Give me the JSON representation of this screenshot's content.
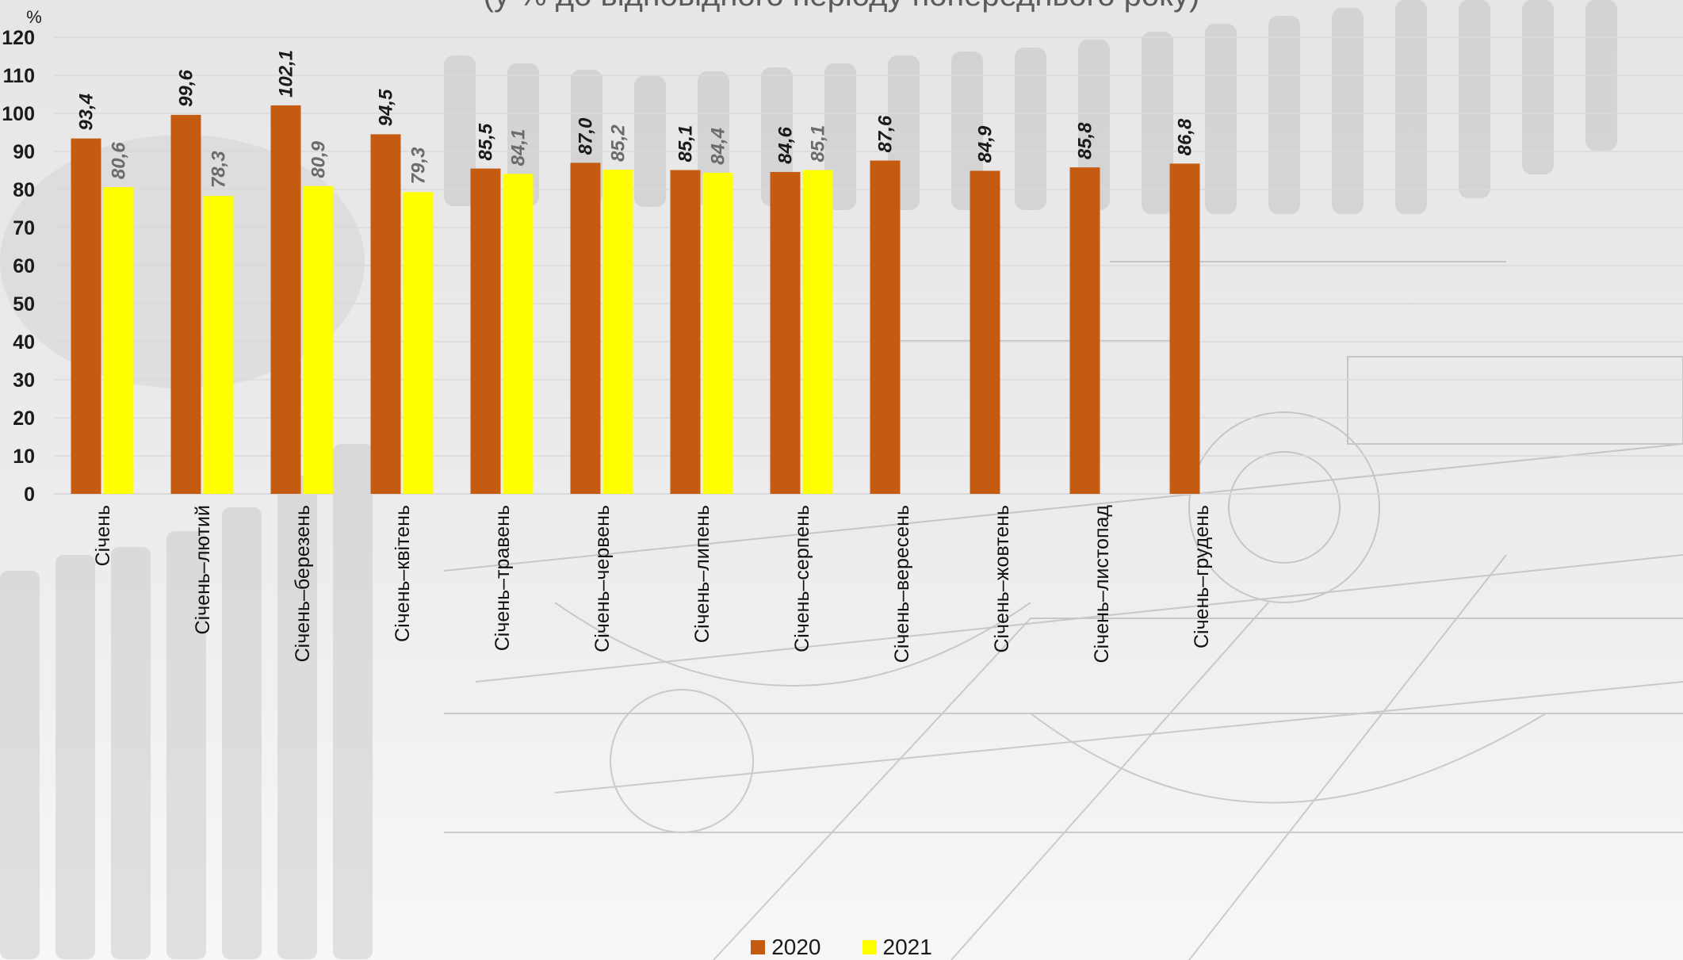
{
  "subtitle": "(у % до відповідного періоду попереднього року)",
  "colors": {
    "series_2020": "#c55a11",
    "series_2021": "#ffff00",
    "label_2020": "#1a1a1a",
    "label_2021": "#6b6b6b",
    "grid": "#d9d9d9"
  },
  "chart_data": {
    "type": "bar",
    "title": "",
    "subtitle": "(у % до відповідного періоду попереднього року)",
    "ylabel": "%",
    "xlabel": "",
    "ylim": [
      0,
      120
    ],
    "yticks": [
      0,
      10,
      20,
      30,
      40,
      50,
      60,
      70,
      80,
      90,
      100,
      110,
      120
    ],
    "grid": true,
    "legend_position": "bottom",
    "categories": [
      "Січень",
      "Січень–лютий",
      "Січень–березень",
      "Січень–квітень",
      "Січень–травень",
      "Січень–червень",
      "Січень–липень",
      "Січень–серпень",
      "Січень–вересень",
      "Січень–жовтень",
      "Січень–листопад",
      "Січень–грудень"
    ],
    "series": [
      {
        "name": "2020",
        "values": [
          93.4,
          99.6,
          102.1,
          94.5,
          85.5,
          87.0,
          85.1,
          84.6,
          87.6,
          84.9,
          85.8,
          86.8
        ],
        "labels": [
          "93,4",
          "99,6",
          "102,1",
          "94,5",
          "85,5",
          "87,0",
          "85,1",
          "84,6",
          "87,6",
          "84,9",
          "85,8",
          "86,8"
        ]
      },
      {
        "name": "2021",
        "values": [
          80.6,
          78.3,
          80.9,
          79.3,
          84.1,
          85.2,
          84.4,
          85.1,
          null,
          null,
          null,
          null
        ],
        "labels": [
          "80,6",
          "78,3",
          "80,9",
          "79,3",
          "84,1",
          "85,2",
          "84,4",
          "85,1",
          null,
          null,
          null,
          null
        ]
      }
    ]
  }
}
